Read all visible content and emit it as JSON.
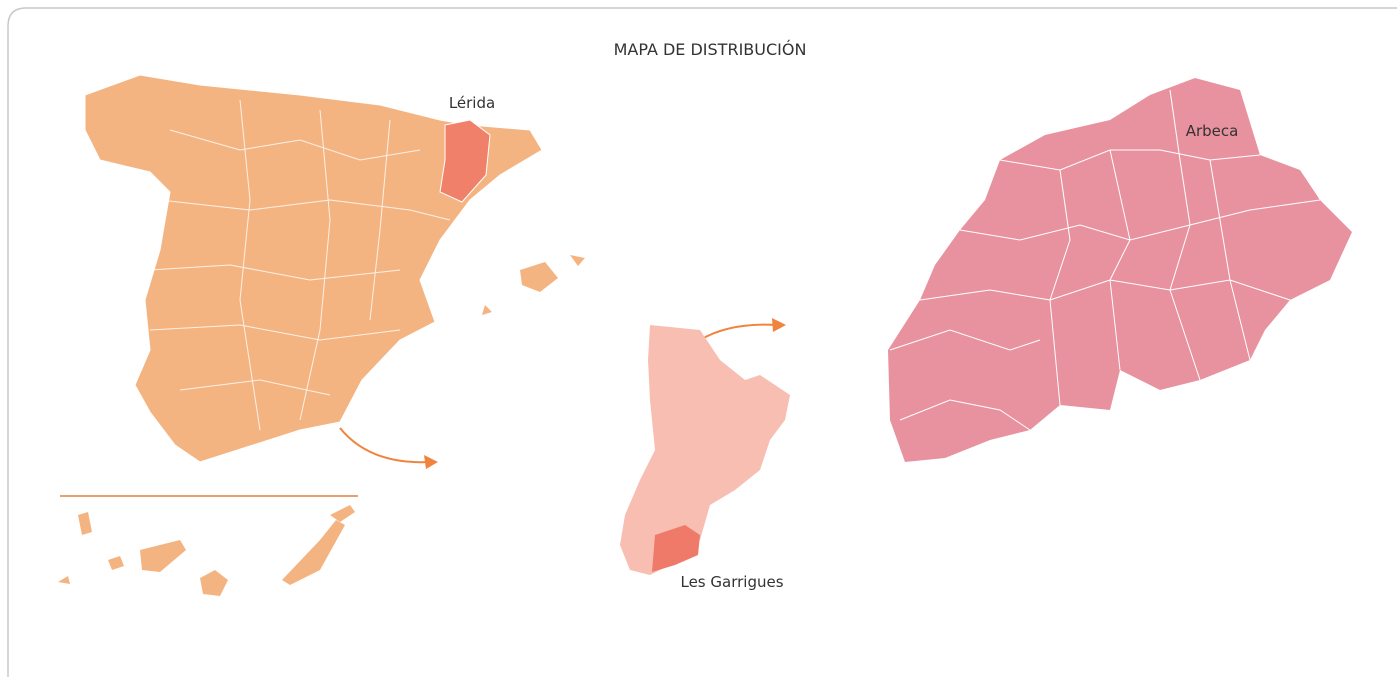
{
  "title": "MAPA DE DISTRIBUCIÓN",
  "labels": {
    "province": "Lérida",
    "county": "Les Garrigues",
    "town": "Arbeca"
  }
}
